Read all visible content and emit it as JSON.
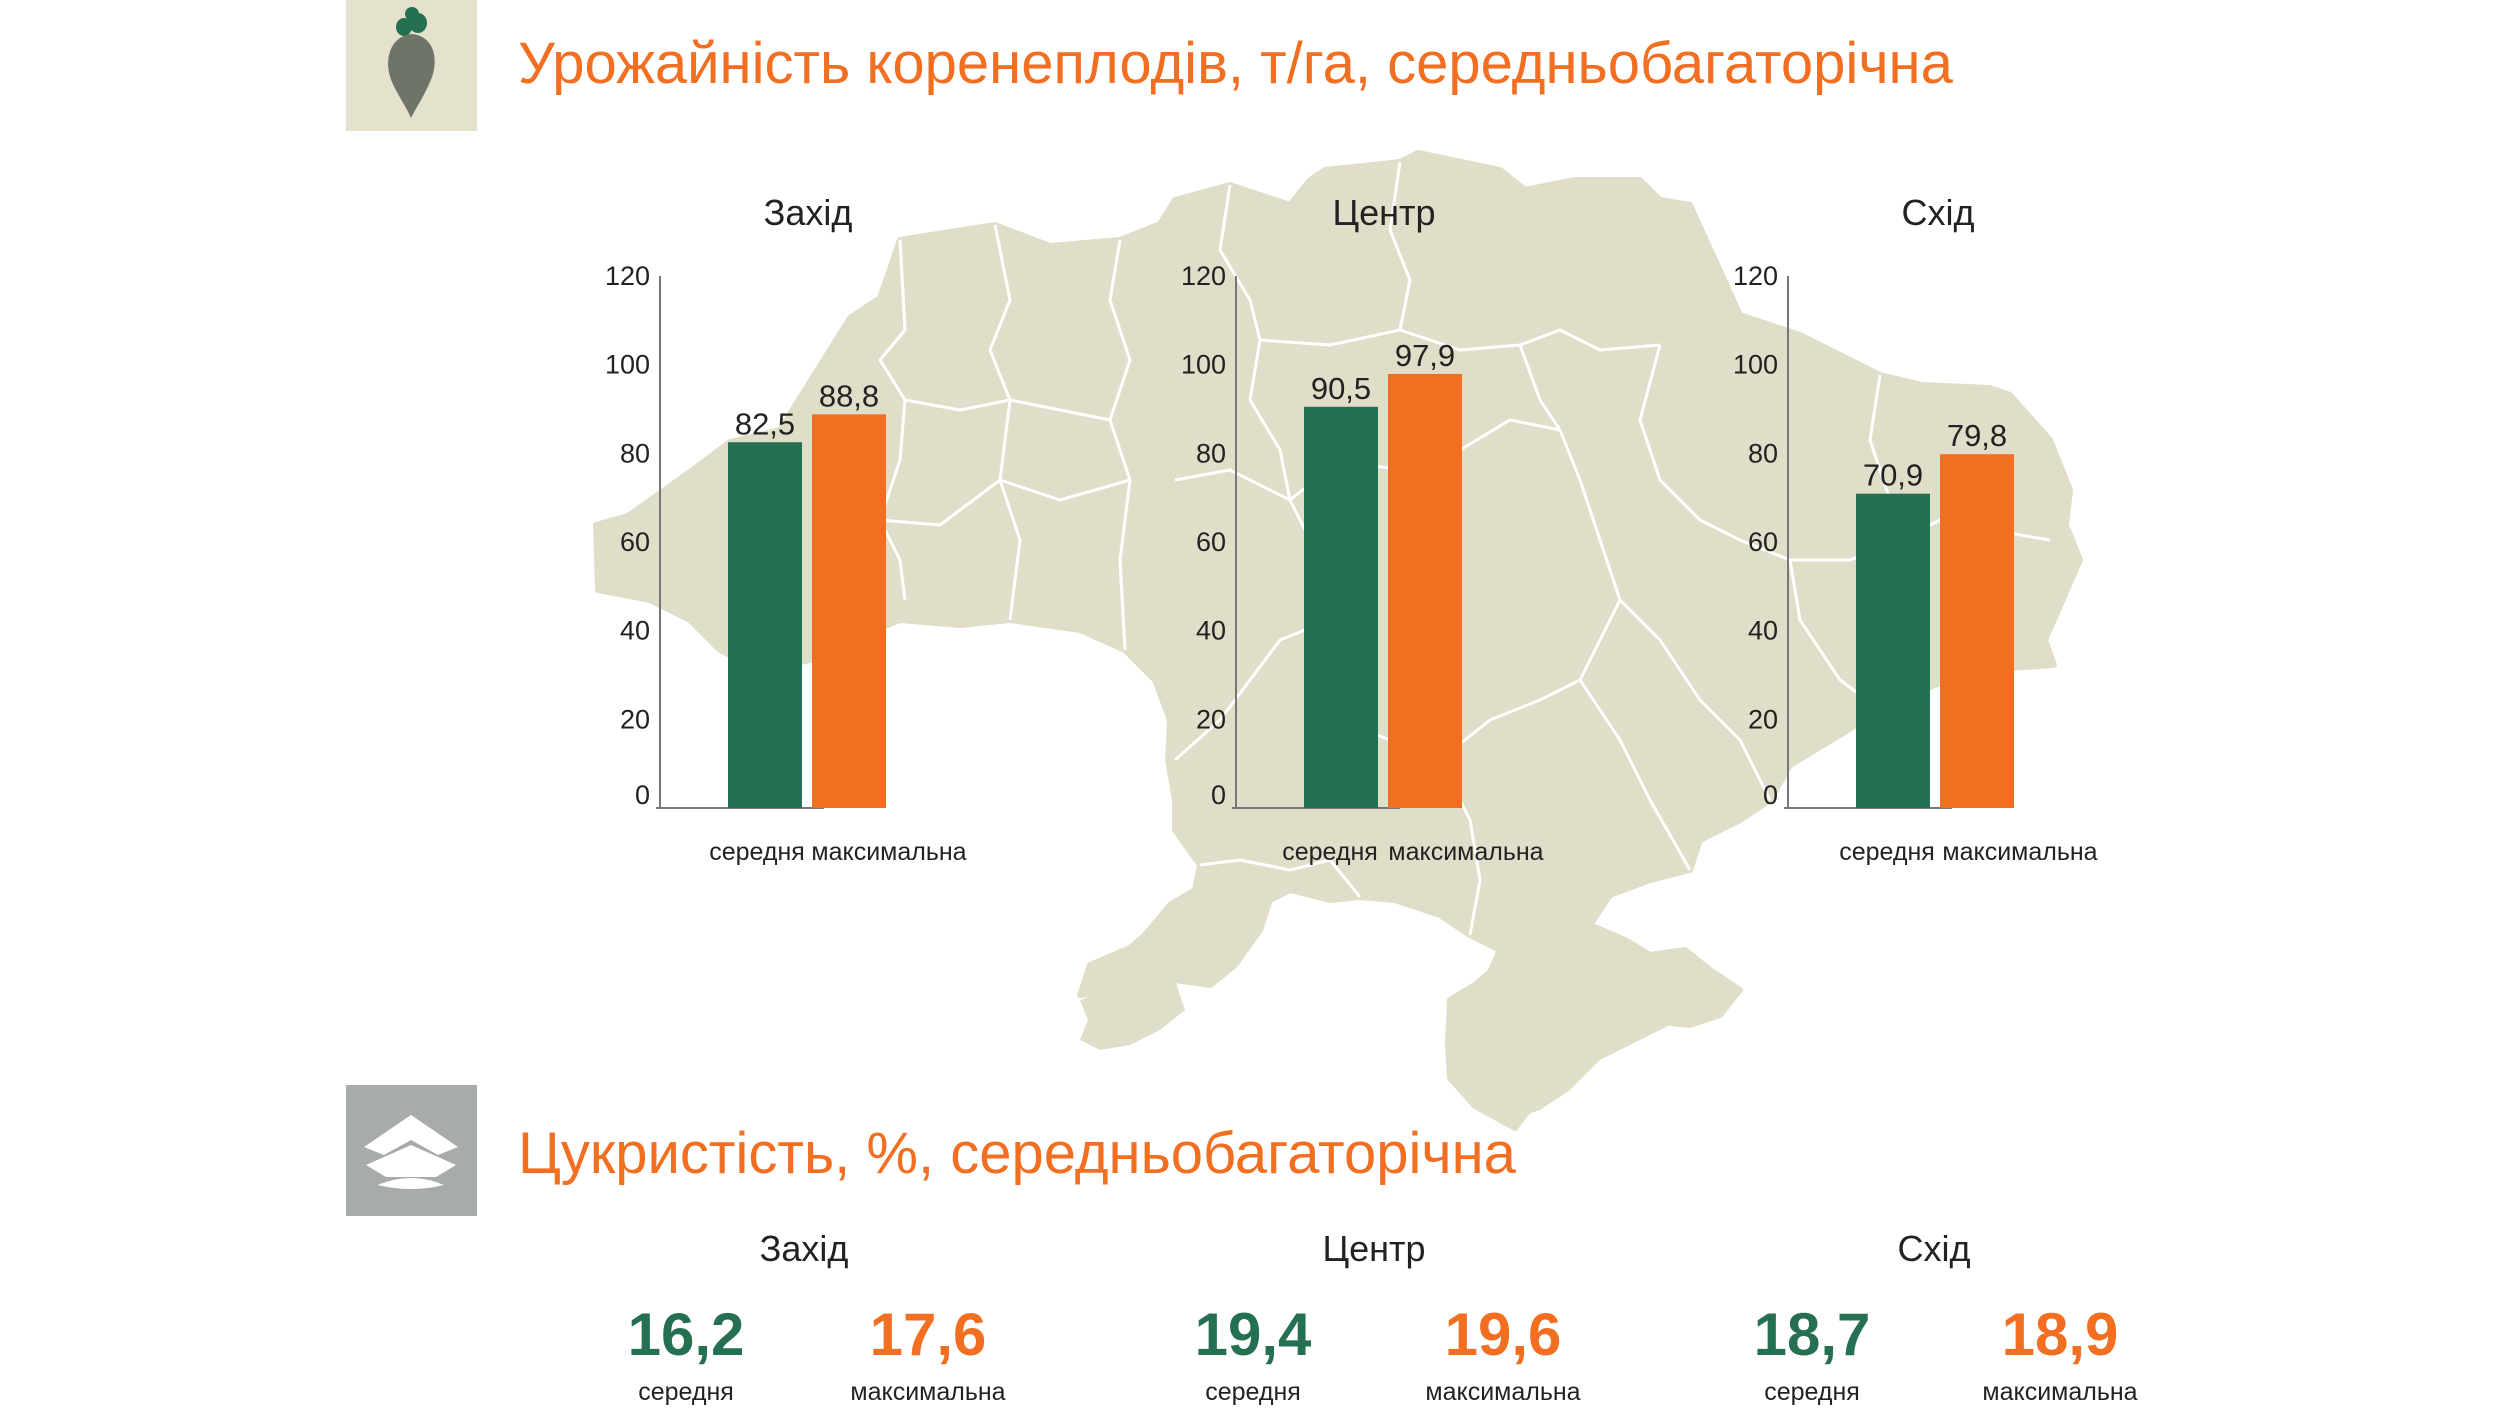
{
  "colors": {
    "avg": "#267052",
    "max": "#f26f22",
    "map": "#e0ddc9",
    "heading": "#f26f22"
  },
  "icons": {
    "yield": "beet-icon",
    "sugar": "sugar-pile-icon"
  },
  "headings": {
    "yield": "Урожайність коренеплодів, т/га, середньобагаторічна",
    "sugar": "Цукристість, %, середньобагаторічна"
  },
  "chart_data": [
    {
      "type": "bar",
      "title": "Захід",
      "categories": [
        "середня",
        "максимальна"
      ],
      "values": [
        82.5,
        88.8
      ],
      "value_labels": [
        "82,5",
        "88,8"
      ],
      "ylim": [
        0,
        120
      ],
      "yticks": [
        0,
        20,
        40,
        60,
        80,
        100,
        120
      ]
    },
    {
      "type": "bar",
      "title": "Центр",
      "categories": [
        "середня",
        "максимальна"
      ],
      "values": [
        90.5,
        97.9
      ],
      "value_labels": [
        "90,5",
        "97,9"
      ],
      "ylim": [
        0,
        120
      ],
      "yticks": [
        0,
        20,
        40,
        60,
        80,
        100,
        120
      ]
    },
    {
      "type": "bar",
      "title": "Схід",
      "categories": [
        "середня",
        "максимальна"
      ],
      "values": [
        70.9,
        79.8
      ],
      "value_labels": [
        "70,9",
        "79,8"
      ],
      "ylim": [
        0,
        120
      ],
      "yticks": [
        0,
        20,
        40,
        60,
        80,
        100,
        120
      ]
    }
  ],
  "sugar": [
    {
      "region": "Захід",
      "avg": "16,2",
      "max": "17,6",
      "avg_label": "середня",
      "max_label": "максимальна"
    },
    {
      "region": "Центр",
      "avg": "19,4",
      "max": "19,6",
      "avg_label": "середня",
      "max_label": "максимальна"
    },
    {
      "region": "Схід",
      "avg": "18,7",
      "max": "18,9",
      "avg_label": "середня",
      "max_label": "максимальна"
    }
  ]
}
